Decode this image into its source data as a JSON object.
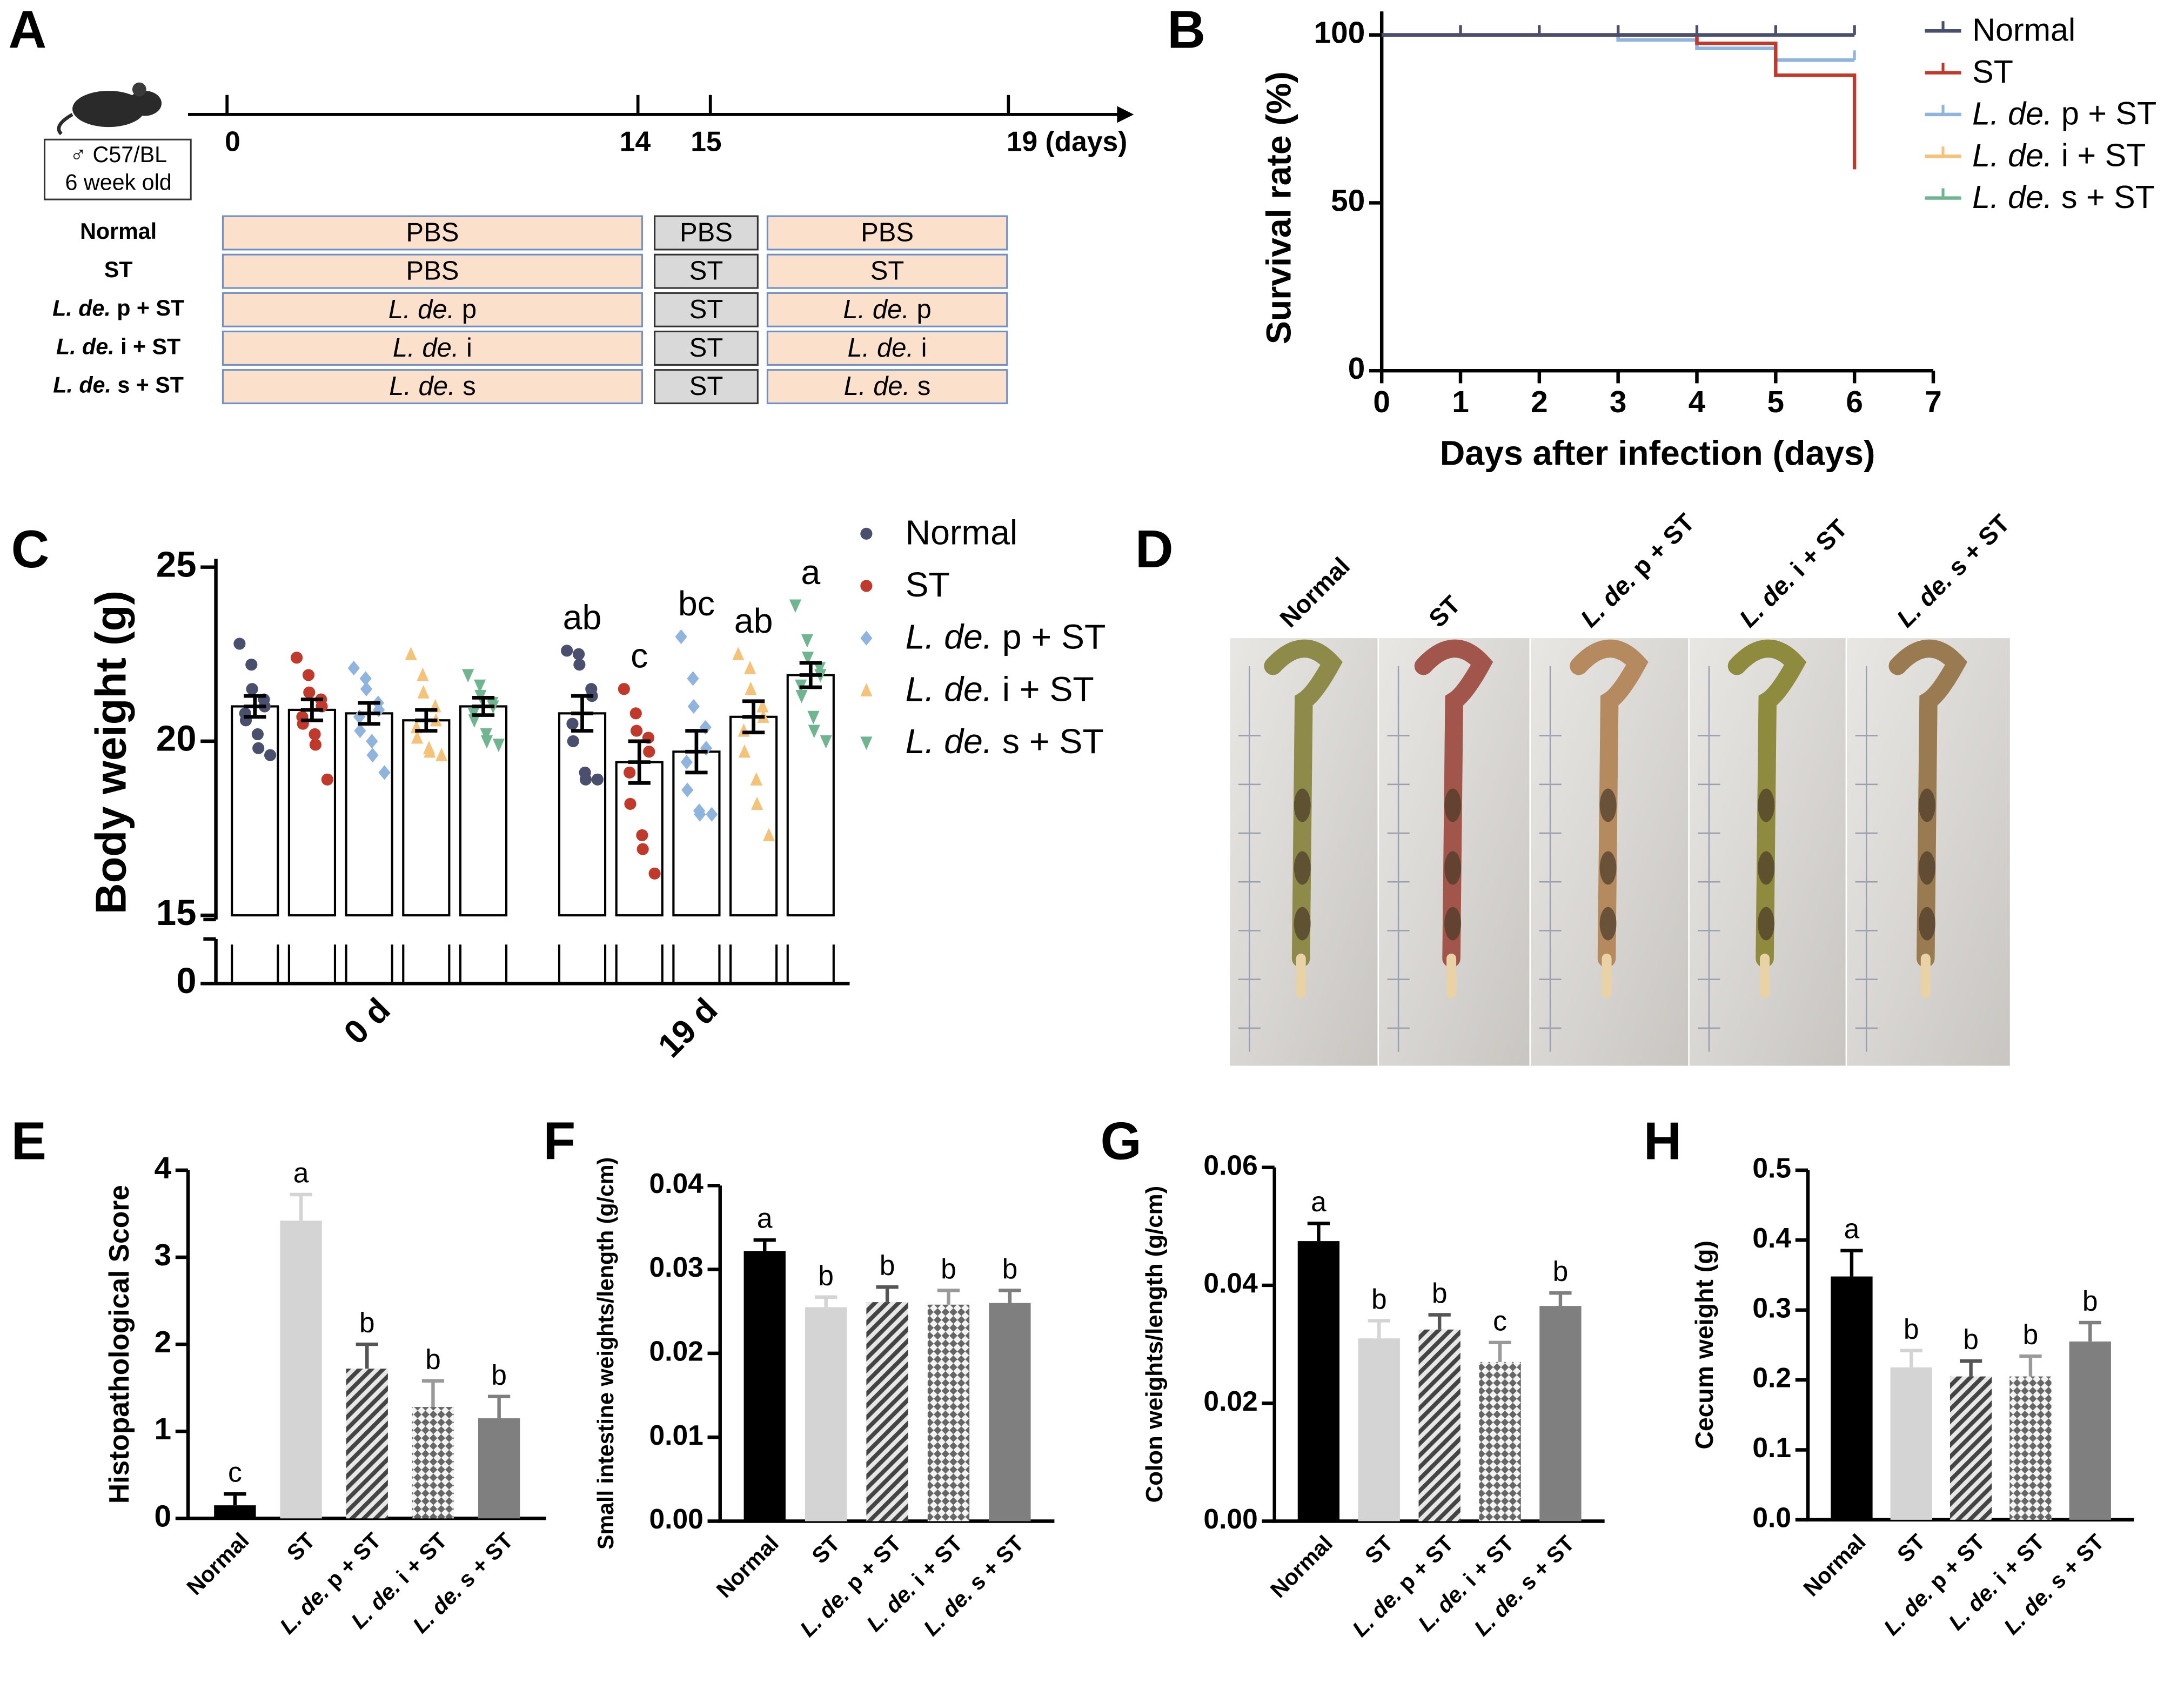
{
  "timeline": {
    "panel": "A",
    "mouse_label": [
      "♂ C57/BL",
      "6 week old"
    ],
    "day_labels": [
      "0",
      "14",
      "15",
      "19 (days)"
    ],
    "groups": [
      "Normal",
      "ST",
      "L. de. p + ST",
      "L. de. i + ST",
      "L. de. s + ST"
    ],
    "protocol": [
      [
        "PBS",
        "PBS",
        "PBS"
      ],
      [
        "PBS",
        "ST",
        "ST"
      ],
      [
        "L. de. p",
        "ST",
        "L. de. p"
      ],
      [
        "L. de. i",
        "ST",
        "L. de. i"
      ],
      [
        "L. de. s",
        "ST",
        "L. de. s"
      ]
    ]
  },
  "photos": {
    "panel": "D",
    "labels": [
      "Normal",
      "ST",
      "L. de. p + ST",
      "L. de. i + ST",
      "L. de. s + ST"
    ]
  },
  "chart_data": [
    {
      "type": "line",
      "step": true,
      "panel": "B",
      "ylabel": "Survival rate (%)",
      "xlabel": "Days after infection (days)",
      "x": [
        0,
        1,
        2,
        3,
        4,
        5,
        6
      ],
      "xlim": [
        0,
        7
      ],
      "xticks": [
        0,
        1,
        2,
        3,
        4,
        5,
        6,
        7
      ],
      "ylim": [
        0,
        107
      ],
      "yticks": [
        0,
        50,
        100
      ],
      "series": [
        {
          "name": "Normal",
          "color": "#4a4f6e",
          "values": [
            100,
            100,
            100,
            100,
            100,
            100,
            100
          ]
        },
        {
          "name": "ST",
          "color": "#c0392b",
          "values": [
            100,
            100,
            100,
            100,
            97.5,
            88,
            60
          ]
        },
        {
          "name": "L. de. p + ST",
          "color": "#8fb4dd",
          "values": [
            100,
            100,
            100,
            98.5,
            96,
            92.5,
            92.5
          ]
        },
        {
          "name": "L. de. i + ST",
          "color": "#f5c27a",
          "values": [
            100,
            100,
            100,
            100,
            100,
            100,
            100
          ]
        },
        {
          "name": "L. de. s + ST",
          "color": "#6fb590",
          "values": [
            100,
            100,
            100,
            100,
            100,
            100,
            100
          ]
        }
      ]
    },
    {
      "type": "bar_scatter",
      "panel": "C",
      "ylabel": "Body weight (g)",
      "categories": [
        "0 d",
        "19 d"
      ],
      "ylim": [
        15,
        25
      ],
      "yticks": [
        0,
        15,
        20,
        25
      ],
      "axis_break": true,
      "series": [
        {
          "name": "Normal",
          "color": "#4a4f6e",
          "marker": "circle",
          "values": [
            21.0,
            20.8
          ],
          "errors": [
            0.3,
            0.5
          ],
          "letters": [
            null,
            "ab"
          ],
          "points": [
            [
              22.8,
              22.2,
              21.5,
              21.2,
              21.0,
              20.8,
              20.6,
              20.2,
              19.8,
              19.6
            ],
            [
              22.6,
              22.5,
              22.2,
              21.5,
              21.3,
              20.5,
              20.0,
              19.1,
              18.9,
              18.9
            ]
          ]
        },
        {
          "name": "ST",
          "color": "#c0392b",
          "marker": "circle",
          "values": [
            20.9,
            19.4
          ],
          "errors": [
            0.3,
            0.6
          ],
          "letters": [
            null,
            "c"
          ],
          "points": [
            [
              22.4,
              21.9,
              21.4,
              21.2,
              21.0,
              20.7,
              20.5,
              20.2,
              19.9,
              18.9
            ],
            [
              21.5,
              20.8,
              20.3,
              20.1,
              19.7,
              19.1,
              18.2,
              17.3,
              16.9,
              16.2
            ]
          ]
        },
        {
          "name": "L. de. p + ST",
          "color": "#8fb4dd",
          "marker": "diamond",
          "values": [
            20.8,
            19.7
          ],
          "errors": [
            0.3,
            0.6
          ],
          "letters": [
            null,
            "bc"
          ],
          "points": [
            [
              22.1,
              21.8,
              21.5,
              21.1,
              20.9,
              20.7,
              20.3,
              20.0,
              19.6,
              19.1
            ],
            [
              23.0,
              21.8,
              21.0,
              20.4,
              19.8,
              19.4,
              18.6,
              18.0,
              17.9,
              17.9
            ]
          ]
        },
        {
          "name": "L. de. i + ST",
          "color": "#f5c27a",
          "marker": "triangle-up",
          "values": [
            20.6,
            20.7
          ],
          "errors": [
            0.3,
            0.45
          ],
          "letters": [
            null,
            "ab"
          ],
          "points": [
            [
              22.5,
              21.9,
              21.4,
              21.0,
              20.6,
              20.4,
              20.1,
              19.8,
              19.7,
              19.6
            ],
            [
              22.5,
              22.1,
              21.5,
              21.0,
              20.7,
              20.3,
              19.7,
              18.9,
              18.2,
              17.3
            ]
          ]
        },
        {
          "name": "L. de. s + ST",
          "color": "#6fb590",
          "marker": "triangle-down",
          "values": [
            21.0,
            21.9
          ],
          "errors": [
            0.25,
            0.35
          ],
          "letters": [
            null,
            "a"
          ],
          "points": [
            [
              21.9,
              21.6,
              21.3,
              21.1,
              21.0,
              20.8,
              20.6,
              20.2,
              20.0,
              19.9
            ],
            [
              23.9,
              22.9,
              22.4,
              22.1,
              21.9,
              21.6,
              21.3,
              20.7,
              20.3,
              20.0
            ]
          ]
        }
      ]
    },
    {
      "type": "bar",
      "panel": "E",
      "ylabel": "Histopathological Score",
      "categories": [
        "Normal",
        "ST",
        "L. de. p + ST",
        "L. de. i + ST",
        "L. de. s + ST"
      ],
      "values": [
        0.15,
        3.42,
        1.72,
        1.28,
        1.15
      ],
      "errors": [
        0.13,
        0.3,
        0.28,
        0.3,
        0.25
      ],
      "letters": [
        "c",
        "a",
        "b",
        "b",
        "b"
      ],
      "colors": [
        "#000000",
        "#d4d4d4",
        "#555555",
        "#9a9a9a",
        "#7f7f7f"
      ],
      "patterns": [
        "solid",
        "solid",
        "hatch",
        "cross",
        "solid"
      ],
      "ylim": [
        0,
        4
      ],
      "yticks": [
        0,
        1,
        2,
        3,
        4
      ]
    },
    {
      "type": "bar",
      "panel": "F",
      "ylabel": "Small intestine weights/length (g/cm)",
      "categories": [
        "Normal",
        "ST",
        "L. de. p + ST",
        "L. de. i + ST",
        "L. de. s + ST"
      ],
      "values": [
        0.0322,
        0.0255,
        0.0261,
        0.0258,
        0.026
      ],
      "errors": [
        0.0013,
        0.0012,
        0.0018,
        0.0017,
        0.0015
      ],
      "letters": [
        "a",
        "b",
        "b",
        "b",
        "b"
      ],
      "colors": [
        "#000000",
        "#d4d4d4",
        "#555555",
        "#9a9a9a",
        "#7f7f7f"
      ],
      "patterns": [
        "solid",
        "solid",
        "hatch",
        "cross",
        "solid"
      ],
      "ylim": [
        0,
        0.04
      ],
      "yticks": [
        {
          "value": 0,
          "label": "0.00"
        },
        0.01,
        0.02,
        0.03,
        0.04
      ]
    },
    {
      "type": "bar",
      "panel": "G",
      "ylabel": "Colon weights/length (g/cm)",
      "categories": [
        "Normal",
        "ST",
        "L. de. p + ST",
        "L. de. i + ST",
        "L. de. s + ST"
      ],
      "values": [
        0.0475,
        0.031,
        0.0325,
        0.027,
        0.0365
      ],
      "errors": [
        0.003,
        0.003,
        0.0025,
        0.0033,
        0.0022
      ],
      "letters": [
        "a",
        "b",
        "b",
        "c",
        "b"
      ],
      "colors": [
        "#000000",
        "#d4d4d4",
        "#555555",
        "#9a9a9a",
        "#7f7f7f"
      ],
      "patterns": [
        "solid",
        "solid",
        "hatch",
        "cross",
        "solid"
      ],
      "ylim": [
        0,
        0.06
      ],
      "yticks": [
        {
          "value": 0,
          "label": "0.00"
        },
        0.02,
        0.04,
        0.06
      ]
    },
    {
      "type": "bar",
      "panel": "H",
      "ylabel": "Cecum weight (g)",
      "categories": [
        "Normal",
        "ST",
        "L. de. p + ST",
        "L. de. i + ST",
        "L. de. s + ST"
      ],
      "values": [
        0.348,
        0.218,
        0.205,
        0.205,
        0.255
      ],
      "errors": [
        0.037,
        0.024,
        0.022,
        0.029,
        0.027
      ],
      "letters": [
        "a",
        "b",
        "b",
        "b",
        "b"
      ],
      "colors": [
        "#000000",
        "#d4d4d4",
        "#555555",
        "#9a9a9a",
        "#7f7f7f"
      ],
      "patterns": [
        "solid",
        "solid",
        "hatch",
        "cross",
        "solid"
      ],
      "ylim": [
        0,
        0.5
      ],
      "yticks": [
        {
          "value": 0,
          "label": "0.0"
        },
        0.1,
        0.2,
        0.3,
        0.4,
        0.5
      ]
    }
  ]
}
